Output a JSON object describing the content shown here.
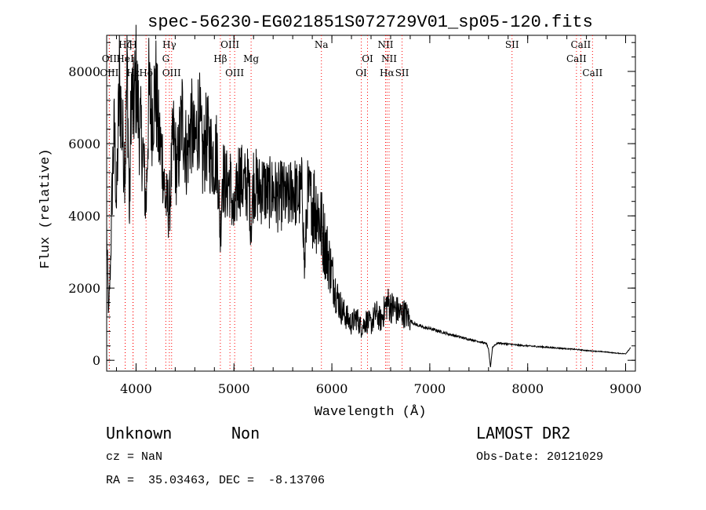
{
  "chart_data": {
    "type": "line",
    "title": "spec-56230-EG021851S072729V01_sp05-120.fits",
    "xlabel": "Wavelength (Å)",
    "ylabel": "Flux (relative)",
    "xlim": [
      3700,
      9100
    ],
    "ylim": [
      -300,
      9000
    ],
    "x_ticks": [
      4000,
      5000,
      6000,
      7000,
      8000,
      9000
    ],
    "y_ticks": [
      0,
      2000,
      4000,
      6000,
      8000
    ],
    "grid": false,
    "line_color": "#000000",
    "marker_color": "#ff0000",
    "spectrum": {
      "name": "flux",
      "x": [
        3700,
        3720,
        3740,
        3760,
        3780,
        3800,
        3830,
        3860,
        3890,
        3910,
        3933,
        3950,
        3970,
        4000,
        4030,
        4070,
        4102,
        4130,
        4160,
        4200,
        4230,
        4270,
        4300,
        4340,
        4380,
        4420,
        4470,
        4520,
        4560,
        4600,
        4640,
        4680,
        4720,
        4760,
        4800,
        4830,
        4861,
        4880,
        4920,
        4960,
        5000,
        5050,
        5100,
        5150,
        5175,
        5200,
        5250,
        5300,
        5350,
        5400,
        5450,
        5500,
        5550,
        5600,
        5650,
        5700,
        5720,
        5750,
        5800,
        5850,
        5900,
        5950,
        6000,
        6050,
        6100,
        6150,
        6200,
        6250,
        6300,
        6350,
        6400,
        6450,
        6500,
        6563,
        6600,
        6650,
        6700,
        6750,
        6800,
        6850,
        6900,
        6950,
        7000,
        7100,
        7200,
        7300,
        7400,
        7500,
        7580,
        7600,
        7620,
        7640,
        7660,
        7700,
        7800,
        7900,
        8000,
        8100,
        8200,
        8300,
        8400,
        8500,
        8600,
        8700,
        8800,
        8900,
        9000,
        9050
      ],
      "y": [
        3500,
        1200,
        2800,
        5200,
        6400,
        4200,
        7800,
        6200,
        5400,
        8200,
        3800,
        7600,
        6800,
        7800,
        6600,
        5800,
        4200,
        7400,
        6800,
        7600,
        6200,
        5600,
        4400,
        4200,
        6200,
        5200,
        6800,
        5600,
        6600,
        5800,
        6900,
        5500,
        6200,
        5800,
        5600,
        5800,
        3400,
        5200,
        4800,
        5000,
        3800,
        5200,
        4800,
        4900,
        3800,
        5000,
        4700,
        4800,
        4600,
        4700,
        4500,
        4600,
        4400,
        4800,
        4500,
        4700,
        2400,
        4600,
        4400,
        4200,
        3600,
        3000,
        2400,
        1800,
        1400,
        1200,
        1000,
        1200,
        900,
        1100,
        1000,
        1300,
        1100,
        1600,
        1500,
        1400,
        1300,
        1300,
        1100,
        1000,
        950,
        900,
        880,
        800,
        720,
        650,
        580,
        520,
        460,
        300,
        -200,
        350,
        420,
        480,
        450,
        420,
        400,
        380,
        360,
        340,
        320,
        300,
        270,
        250,
        230,
        200,
        180,
        350
      ]
    },
    "line_markers": [
      {
        "label": "Hζ",
        "x": 3889,
        "row": 0
      },
      {
        "label": "OII",
        "x": 3727,
        "row": 1
      },
      {
        "label": "OIII",
        "x": 3727,
        "row": 2
      },
      {
        "label": "Hε",
        "x": 3970,
        "row": 2
      },
      {
        "label": "HeI",
        "x": 3889,
        "row": 1
      },
      {
        "label": "H",
        "x": 3968,
        "row": 0
      },
      {
        "label": "Hδ",
        "x": 4102,
        "row": 2
      },
      {
        "label": "Hγ",
        "x": 4340,
        "row": 0
      },
      {
        "label": "G",
        "x": 4304,
        "row": 1
      },
      {
        "label": "OIII",
        "x": 4363,
        "row": 2
      },
      {
        "label": "OIII",
        "x": 4959,
        "row": 0
      },
      {
        "label": "Hβ",
        "x": 4861,
        "row": 1
      },
      {
        "label": "OIII",
        "x": 5007,
        "row": 2
      },
      {
        "label": "Mg",
        "x": 5175,
        "row": 1
      },
      {
        "label": "Na",
        "x": 5893,
        "row": 0
      },
      {
        "label": "OI",
        "x": 6364,
        "row": 1
      },
      {
        "label": "OI",
        "x": 6300,
        "row": 2
      },
      {
        "label": "NII",
        "x": 6548,
        "row": 0
      },
      {
        "label": "NII",
        "x": 6584,
        "row": 1
      },
      {
        "label": "Hα",
        "x": 6563,
        "row": 2
      },
      {
        "label": "SII",
        "x": 6717,
        "row": 2
      },
      {
        "label": "SII",
        "x": 7840,
        "row": 0
      },
      {
        "label": "CaII",
        "x": 8542,
        "row": 0
      },
      {
        "label": "CaII",
        "x": 8498,
        "row": 1
      },
      {
        "label": "CaII",
        "x": 8662,
        "row": 2
      }
    ]
  },
  "footer": {
    "object_class": "Unknown",
    "subclass": "Non",
    "survey": "LAMOST DR2",
    "cz": "cz = NaN",
    "obs_date": "Obs-Date: 20121029",
    "coords": "RA =  35.03463, DEC =  -8.13706"
  }
}
